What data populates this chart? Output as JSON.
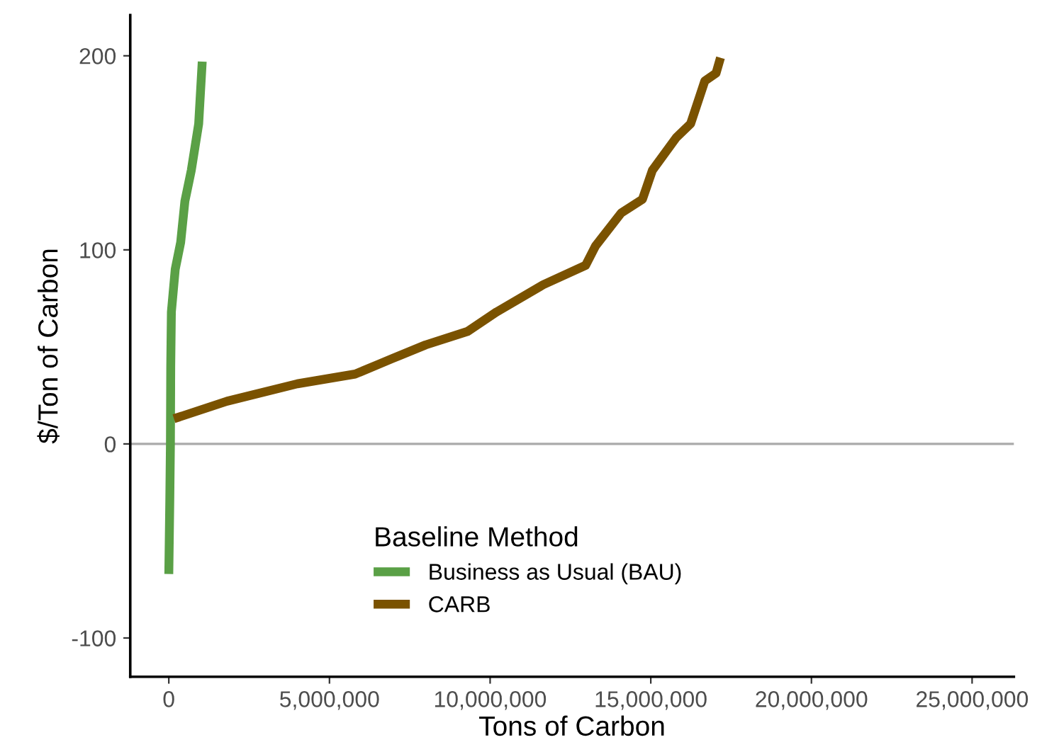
{
  "chart_data": {
    "type": "line",
    "xlabel": "Tons of Carbon",
    "ylabel": "$/Ton of Carbon",
    "legend_title": "Baseline Method",
    "legend": "bottom",
    "grid": false,
    "xlim": [
      -1200000,
      26300000
    ],
    "ylim": [
      -120,
      221
    ],
    "xticks": [
      0,
      {
        "value": 5000000,
        "label": "5,000,000"
      },
      {
        "value": 10000000,
        "label": "10,000,000"
      },
      {
        "value": 15000000,
        "label": "15,000,000"
      },
      {
        "value": 20000000,
        "label": "20,000,000"
      },
      {
        "value": 25000000,
        "label": "25,000,000"
      }
    ],
    "yticks": [
      -100,
      0,
      100,
      200
    ],
    "ref_lines": [
      {
        "axis": "y",
        "value": 0,
        "color": "#aaaaaa"
      }
    ],
    "series": [
      {
        "name": "Business as Usual (BAU)",
        "color": "#5aa046",
        "x": [
          0,
          30000,
          50000,
          60000,
          80000,
          200000,
          370000,
          500000,
          700000,
          930000,
          1040000
        ],
        "values": [
          -67,
          -30,
          0,
          40,
          68,
          90,
          104,
          125,
          141,
          165,
          197
        ]
      },
      {
        "name": "CARB",
        "color": "#7a5200",
        "x": [
          160000,
          1810000,
          4000000,
          5800000,
          6960000,
          7990000,
          9300000,
          10200000,
          11650000,
          12970000,
          13280000,
          14080000,
          14740000,
          15050000,
          15800000,
          16240000,
          16680000,
          17030000,
          17170000
        ],
        "values": [
          13,
          22,
          31,
          36,
          44,
          51,
          58,
          68,
          82,
          92,
          102,
          119,
          126,
          141,
          158,
          165,
          187,
          191,
          199
        ]
      }
    ]
  }
}
